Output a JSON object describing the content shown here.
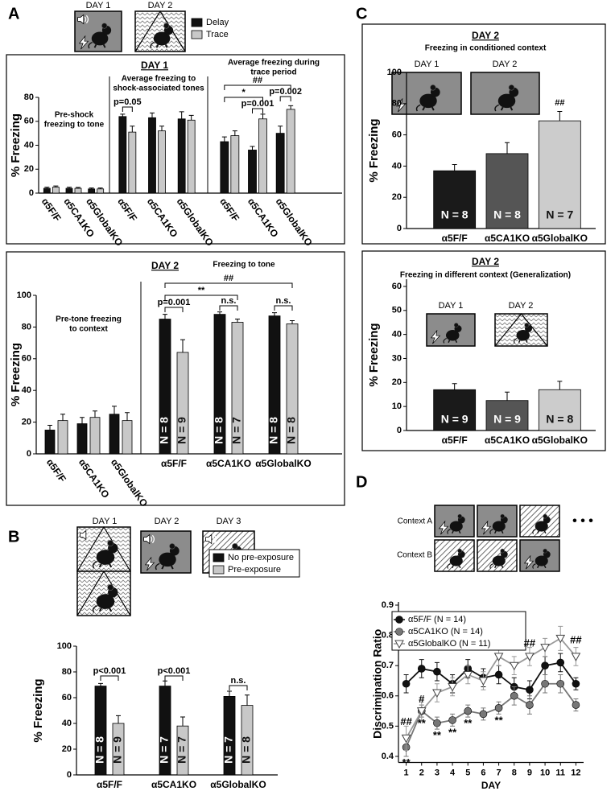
{
  "chart_data": [
    {
      "type": "bar",
      "panel": "A",
      "title": "DAY 1",
      "ylabel": "% Freezing",
      "icons": [
        "DAY 1",
        "DAY 2"
      ],
      "categories": [
        "α5F/F",
        "α5CA1KO",
        "α5GlobalKO"
      ],
      "series": [
        {
          "name": "Delay",
          "color": "#111111"
        },
        {
          "name": "Trace",
          "color": "#c8c8c8"
        }
      ],
      "ylim": [
        0,
        80
      ],
      "yticks": [
        0,
        20,
        40,
        60,
        80
      ],
      "groups": [
        {
          "title": [
            "Pre-shock",
            "freezing to tone"
          ],
          "values": [
            [
              4,
              4,
              3.5
            ],
            [
              5,
              4,
              3.5
            ]
          ],
          "errors": [
            [
              1,
              1,
              0.8
            ],
            [
              1,
              0.8,
              0.8
            ]
          ]
        },
        {
          "title": [
            "Average freezing to",
            "shock-associated tones"
          ],
          "values": [
            [
              64,
              63,
              62
            ],
            [
              51,
              52,
              61
            ]
          ],
          "errors": [
            [
              2,
              4,
              6
            ],
            [
              5,
              4,
              4
            ]
          ],
          "annotations": [
            "p=0.05"
          ]
        },
        {
          "title": [
            "Average freezing during",
            "trace period"
          ],
          "values": [
            [
              43,
              36,
              50
            ],
            [
              48,
              62,
              70
            ]
          ],
          "errors": [
            [
              4,
              3,
              6
            ],
            [
              4,
              4,
              3
            ]
          ],
          "annotations": [
            "##",
            "*",
            "p=0.001",
            "p=0.002"
          ]
        }
      ]
    },
    {
      "type": "bar",
      "title": "DAY 2",
      "ylabel": "% Freezing",
      "categories": [
        "α5F/F",
        "α5CA1KO",
        "α5GlobalKO"
      ],
      "series": [
        {
          "color": "#111111"
        },
        {
          "color": "#c8c8c8"
        }
      ],
      "ylim": [
        0,
        100
      ],
      "yticks": [
        0,
        20,
        40,
        60,
        80,
        100
      ],
      "groups": [
        {
          "title": [
            "Pre-tone freezing",
            "to context"
          ],
          "values": [
            [
              15,
              19,
              25
            ],
            [
              21,
              23,
              21
            ]
          ],
          "errors": [
            [
              3,
              4,
              5
            ],
            [
              4,
              4,
              5
            ]
          ]
        },
        {
          "title": [
            "Freezing to tone"
          ],
          "values": [
            [
              85,
              88,
              87
            ],
            [
              64,
              83,
              82
            ]
          ],
          "errors": [
            [
              3,
              1.5,
              2
            ],
            [
              8,
              2,
              2
            ]
          ],
          "n_labels": [
            [
              "N = 8",
              "N = 8",
              "N = 8"
            ],
            [
              "N = 9",
              "N = 7",
              "N = 8"
            ]
          ],
          "annotations": [
            "p=0.001",
            "n.s.",
            "n.s.",
            "**",
            "##"
          ]
        }
      ]
    },
    {
      "type": "bar",
      "panel": "B",
      "ylabel": "% Freezing",
      "icons": [
        "DAY 1",
        "DAY 2",
        "DAY 3"
      ],
      "categories": [
        "α5F/F",
        "α5CA1KO",
        "α5GlobalKO"
      ],
      "series": [
        {
          "name": "No pre-exposure",
          "color": "#111111"
        },
        {
          "name": "Pre-exposure",
          "color": "#c8c8c8"
        }
      ],
      "ylim": [
        0,
        100
      ],
      "yticks": [
        0,
        20,
        40,
        60,
        80,
        100
      ],
      "groups": [
        {
          "values": [
            [
              69,
              69,
              61
            ],
            [
              40,
              38,
              54
            ]
          ],
          "errors": [
            [
              2,
              4,
              4
            ],
            [
              6,
              7,
              8
            ]
          ],
          "n_labels": [
            [
              "N = 8",
              "N = 7",
              "N = 7"
            ],
            [
              "N = 9",
              "N = 7",
              "N = 8"
            ]
          ],
          "annotations": [
            "p<0.001",
            "p<0.001",
            "n.s."
          ]
        }
      ]
    },
    {
      "type": "bar",
      "panel": "C",
      "title": "DAY 2",
      "subtitle": "Freezing in conditioned context",
      "ylabel": "% Freezing",
      "icons": [
        "DAY 1",
        "DAY 2"
      ],
      "categories": [
        "α5F/F",
        "α5CA1KO",
        "α5GlobalKO"
      ],
      "series": [
        {
          "colors": [
            "#1a1a1a",
            "#555555",
            "#cccccc"
          ]
        }
      ],
      "ylim": [
        0,
        100
      ],
      "yticks": [
        0,
        20,
        40,
        60,
        80,
        100
      ],
      "groups": [
        {
          "values": [
            [
              37,
              48,
              69
            ]
          ],
          "errors": [
            [
              4,
              7,
              6
            ]
          ],
          "n_labels": [
            [
              "N = 8",
              "N = 8",
              "N = 7"
            ]
          ],
          "annotations": [
            "##"
          ]
        }
      ]
    },
    {
      "type": "bar",
      "title": "DAY 2",
      "subtitle": "Freezing in different context (Generalization)",
      "ylabel": "% Freezing",
      "icons": [
        "DAY 1",
        "DAY 2"
      ],
      "categories": [
        "α5F/F",
        "α5CA1KO",
        "α5GlobalKO"
      ],
      "series": [
        {
          "colors": [
            "#1a1a1a",
            "#555555",
            "#cccccc"
          ]
        }
      ],
      "ylim": [
        0,
        63
      ],
      "yticks": [
        0,
        10,
        20,
        30,
        40,
        50,
        60
      ],
      "groups": [
        {
          "values": [
            [
              17,
              12.5,
              17
            ]
          ],
          "errors": [
            [
              2.5,
              3.5,
              3.5
            ]
          ],
          "n_labels": [
            [
              "N = 9",
              "N = 9",
              "N = 8"
            ]
          ]
        }
      ]
    },
    {
      "type": "line",
      "panel": "D",
      "xlabel": "DAY",
      "ylabel": "Discrimination Ratio",
      "contexts": [
        "Context A",
        "Context B"
      ],
      "more": "• • •",
      "x": [
        1,
        2,
        3,
        4,
        5,
        6,
        7,
        8,
        9,
        10,
        11,
        12
      ],
      "xlim": [
        0.5,
        12.5
      ],
      "xticks": [
        1,
        2,
        3,
        4,
        5,
        6,
        7,
        8,
        9,
        10,
        11,
        12
      ],
      "ylim": [
        0.38,
        0.9
      ],
      "yticks": [
        0.4,
        0.5,
        0.6,
        0.7,
        0.8,
        0.9
      ],
      "series": [
        {
          "name": "α5F/F (N = 14)",
          "color": "#111111",
          "marker": "circle",
          "values": [
            0.64,
            0.69,
            0.68,
            0.64,
            0.69,
            0.66,
            0.67,
            0.63,
            0.62,
            0.7,
            0.71,
            0.64
          ],
          "errors": [
            0.03,
            0.03,
            0.03,
            0.03,
            0.03,
            0.03,
            0.03,
            0.03,
            0.03,
            0.03,
            0.03,
            0.02
          ]
        },
        {
          "name": "α5CA1KO (N = 14)",
          "color": "#777777",
          "marker": "circle",
          "values": [
            0.43,
            0.55,
            0.51,
            0.52,
            0.55,
            0.54,
            0.56,
            0.6,
            0.57,
            0.64,
            0.64,
            0.57
          ],
          "errors": [
            0.03,
            0.02,
            0.02,
            0.02,
            0.02,
            0.02,
            0.02,
            0.03,
            0.03,
            0.03,
            0.03,
            0.02
          ]
        },
        {
          "name": "α5GlobalKO (N = 11)",
          "color": "#999999",
          "marker": "triangle",
          "values": [
            0.46,
            0.55,
            0.61,
            0.63,
            0.67,
            0.65,
            0.73,
            0.7,
            0.73,
            0.76,
            0.79,
            0.73
          ],
          "errors": [
            0.04,
            0.03,
            0.03,
            0.03,
            0.03,
            0.03,
            0.03,
            0.03,
            0.03,
            0.03,
            0.04,
            0.03
          ]
        }
      ],
      "annotations": [
        "##",
        "**",
        "#",
        "**",
        "**",
        "**",
        "**",
        "**",
        "##",
        "##"
      ]
    }
  ]
}
